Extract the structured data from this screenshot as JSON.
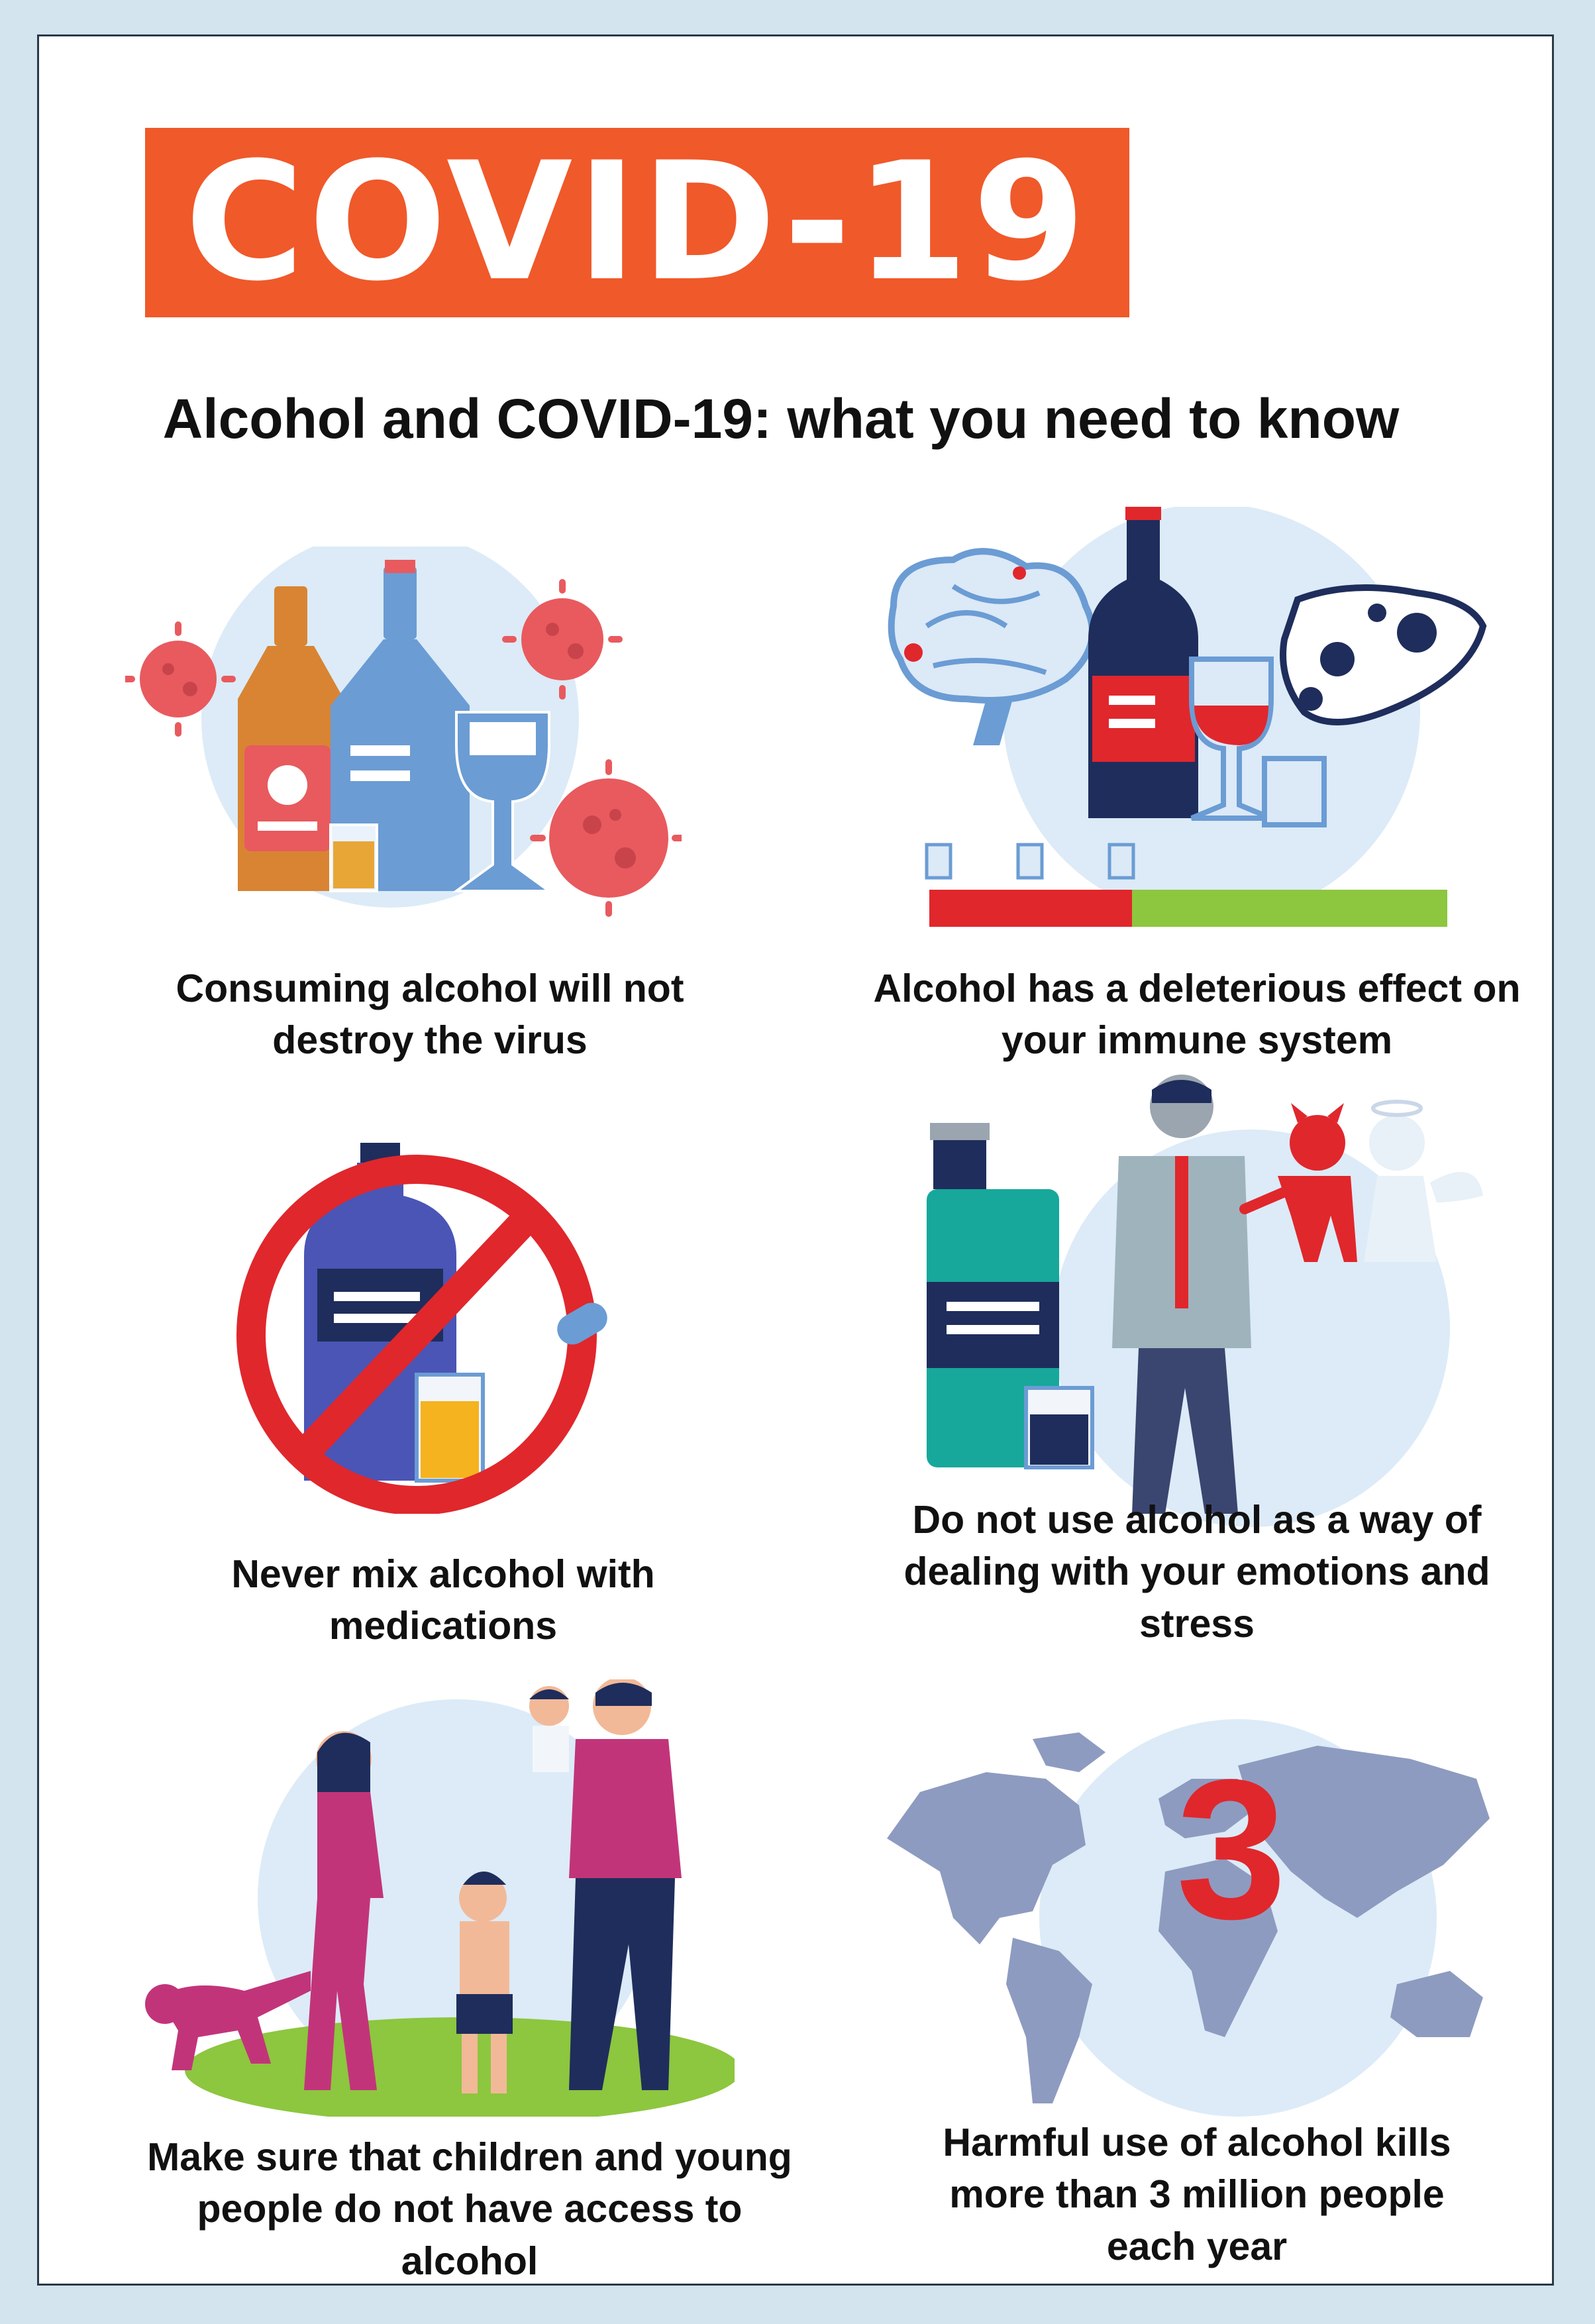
{
  "banner": {
    "title": "COVID-19"
  },
  "subtitle": "Alcohol and COVID-19: what you need to know",
  "items": [
    {
      "caption": "Consuming alcohol will not destroy the virus",
      "icon": "alcohol-bottles-virus-icon"
    },
    {
      "caption": "Alcohol has a deleterious effect on your immune system",
      "icon": "organs-damage-icon"
    },
    {
      "caption": "Never mix alcohol with medications",
      "icon": "no-alcohol-medication-icon"
    },
    {
      "caption": "Do not use alcohol as a way of dealing with your emotions and stress",
      "icon": "stressed-man-icon"
    },
    {
      "caption": "Make sure that children and young people do not have access to alcohol",
      "icon": "family-icon"
    },
    {
      "caption": "Harmful use of alcohol kills more than 3 million people each year",
      "icon": "world-map-icon"
    }
  ],
  "world_map": {
    "number": "3"
  },
  "colors": {
    "banner": "#f0592a",
    "background": "#d3e4ee",
    "virus": "#e85a5e",
    "circle": "#dcebf7",
    "accent_red": "#e0272c",
    "accent_green": "#8dc63f"
  }
}
